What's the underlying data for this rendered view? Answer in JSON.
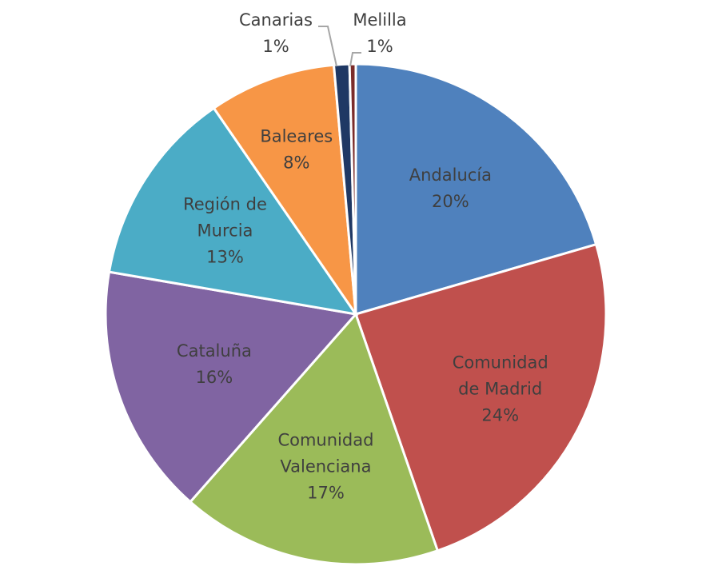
{
  "chart_data": {
    "type": "pie",
    "title": "",
    "slices": [
      {
        "label": "Andalucía",
        "lines": [
          "Andalucía"
        ],
        "pct_label": "20%",
        "value": 20.5,
        "color": "#4F81BD"
      },
      {
        "label": "Comunidad de Madrid",
        "lines": [
          "Comunidad",
          "de Madrid"
        ],
        "pct_label": "24%",
        "value": 24.2,
        "color": "#C0504D"
      },
      {
        "label": "Comunidad Valenciana",
        "lines": [
          "Comunidad",
          "Valenciana"
        ],
        "pct_label": "17%",
        "value": 16.8,
        "color": "#9BBB59"
      },
      {
        "label": "Cataluña",
        "lines": [
          "Cataluña"
        ],
        "pct_label": "16%",
        "value": 16.2,
        "color": "#8064A2"
      },
      {
        "label": "Región de Murcia",
        "lines": [
          "Región de",
          "Murcia"
        ],
        "pct_label": "13%",
        "value": 12.7,
        "color": "#4BACC6"
      },
      {
        "label": "Baleares",
        "lines": [
          "Baleares"
        ],
        "pct_label": "8%",
        "value": 8.2,
        "color": "#F79646"
      },
      {
        "label": "Canarias",
        "lines": [
          "Canarias"
        ],
        "pct_label": "1%",
        "value": 1.0,
        "color": "#1F3864"
      },
      {
        "label": "Melilla",
        "lines": [
          "Melilla"
        ],
        "pct_label": "1%",
        "value": 0.4,
        "color": "#7B2C2A"
      }
    ]
  }
}
